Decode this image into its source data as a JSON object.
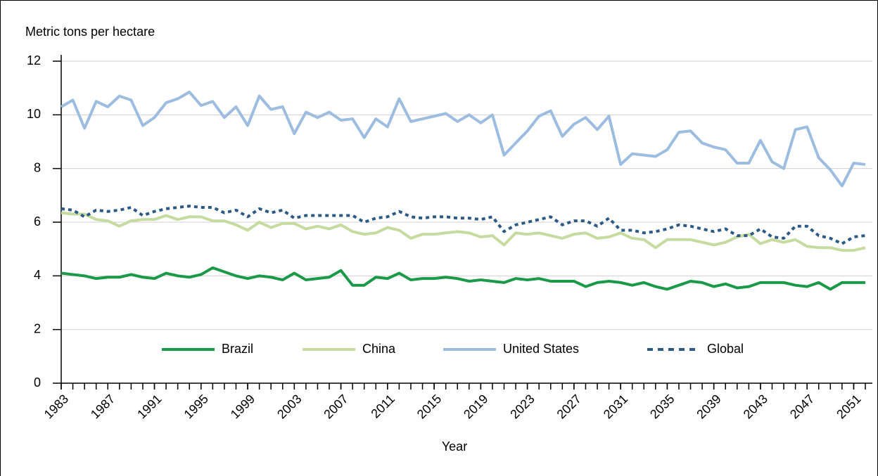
{
  "chart_data": {
    "type": "line",
    "ylabel": "Metric tons per hectare",
    "xlabel": "Year",
    "x": [
      1983,
      1984,
      1985,
      1986,
      1987,
      1988,
      1989,
      1990,
      1991,
      1992,
      1993,
      1994,
      1995,
      1996,
      1997,
      1998,
      1999,
      2000,
      2001,
      2002,
      2003,
      2004,
      2005,
      2006,
      2007,
      2008,
      2009,
      2010,
      2011,
      2012,
      2013,
      2014,
      2015,
      2016,
      2017,
      2018,
      2019,
      2020,
      2021,
      2022,
      2023,
      2024,
      2025,
      2026,
      2027,
      2028,
      2029,
      2030,
      2031,
      2032,
      2033,
      2034,
      2035,
      2036,
      2037,
      2038,
      2039,
      2040,
      2041,
      2042,
      2043,
      2044,
      2045,
      2046,
      2047,
      2048,
      2049,
      2050,
      2051,
      2052
    ],
    "xlim": [
      1983,
      2052
    ],
    "xticks": [
      1983,
      1987,
      1991,
      1995,
      1999,
      2003,
      2007,
      2011,
      2015,
      2019,
      2023,
      2027,
      2031,
      2035,
      2039,
      2043,
      2047,
      2051
    ],
    "ylim": [
      0,
      12
    ],
    "yticks": [
      0,
      2,
      4,
      6,
      8,
      10,
      12
    ],
    "grid": true,
    "legend": "lower center",
    "series": [
      {
        "name": "Brazil",
        "color": "#1a9a48",
        "linestyle": "solid",
        "values": [
          4.1,
          4.05,
          4.0,
          3.9,
          3.95,
          3.95,
          4.05,
          3.95,
          3.9,
          4.1,
          4.0,
          3.95,
          4.05,
          4.3,
          4.15,
          4.0,
          3.9,
          4.0,
          3.95,
          3.85,
          4.1,
          3.85,
          3.9,
          3.95,
          4.2,
          3.65,
          3.65,
          3.95,
          3.9,
          4.1,
          3.85,
          3.9,
          3.9,
          3.95,
          3.9,
          3.8,
          3.85,
          3.8,
          3.75,
          3.9,
          3.85,
          3.9,
          3.8,
          3.8,
          3.8,
          3.6,
          3.75,
          3.8,
          3.75,
          3.65,
          3.75,
          3.6,
          3.5,
          3.65,
          3.8,
          3.75,
          3.6,
          3.7,
          3.55,
          3.6,
          3.75,
          3.75,
          3.75,
          3.65,
          3.6,
          3.75,
          3.5,
          3.75,
          3.75,
          3.75
        ]
      },
      {
        "name": "China",
        "color": "#c5dba0",
        "linestyle": "solid",
        "values": [
          6.35,
          6.3,
          6.3,
          6.1,
          6.05,
          5.85,
          6.05,
          6.1,
          6.1,
          6.25,
          6.1,
          6.2,
          6.2,
          6.05,
          6.05,
          5.9,
          5.7,
          6.0,
          5.8,
          5.95,
          5.95,
          5.75,
          5.85,
          5.75,
          5.9,
          5.65,
          5.55,
          5.6,
          5.8,
          5.7,
          5.4,
          5.55,
          5.55,
          5.6,
          5.65,
          5.6,
          5.45,
          5.5,
          5.15,
          5.6,
          5.55,
          5.6,
          5.5,
          5.4,
          5.55,
          5.6,
          5.4,
          5.45,
          5.6,
          5.4,
          5.35,
          5.05,
          5.35,
          5.35,
          5.35,
          5.25,
          5.15,
          5.25,
          5.45,
          5.55,
          5.2,
          5.35,
          5.25,
          5.35,
          5.1,
          5.05,
          5.05,
          4.95,
          4.95,
          5.05
        ]
      },
      {
        "name": "United States",
        "color": "#9dbde0",
        "linestyle": "solid",
        "values": [
          10.3,
          10.55,
          9.5,
          10.5,
          10.3,
          10.7,
          10.55,
          9.6,
          9.9,
          10.45,
          10.6,
          10.85,
          10.35,
          10.5,
          9.9,
          10.3,
          9.6,
          10.7,
          10.2,
          10.3,
          9.3,
          10.1,
          9.9,
          10.1,
          9.8,
          9.85,
          9.15,
          9.85,
          9.55,
          10.6,
          9.75,
          9.85,
          9.95,
          10.05,
          9.75,
          10.0,
          9.7,
          10.0,
          8.5,
          8.95,
          9.4,
          9.95,
          10.15,
          9.2,
          9.65,
          9.9,
          9.45,
          9.95,
          8.15,
          8.55,
          8.5,
          8.45,
          8.7,
          9.35,
          9.4,
          8.95,
          8.8,
          8.7,
          8.2,
          8.2,
          9.05,
          8.25,
          8.0,
          9.45,
          9.55,
          8.4,
          7.95,
          7.35,
          8.2,
          8.15
        ]
      },
      {
        "name": "Global",
        "color": "#2c5a85",
        "linestyle": "dotted",
        "values": [
          6.5,
          6.45,
          6.2,
          6.45,
          6.4,
          6.45,
          6.55,
          6.25,
          6.4,
          6.5,
          6.55,
          6.6,
          6.55,
          6.55,
          6.35,
          6.45,
          6.2,
          6.5,
          6.35,
          6.45,
          6.15,
          6.25,
          6.25,
          6.25,
          6.25,
          6.25,
          6.0,
          6.15,
          6.2,
          6.4,
          6.2,
          6.15,
          6.2,
          6.2,
          6.15,
          6.15,
          6.1,
          6.2,
          5.65,
          5.9,
          6.0,
          6.1,
          6.2,
          5.9,
          6.05,
          6.05,
          5.85,
          6.15,
          5.7,
          5.7,
          5.6,
          5.65,
          5.75,
          5.9,
          5.85,
          5.75,
          5.65,
          5.75,
          5.5,
          5.5,
          5.75,
          5.45,
          5.4,
          5.85,
          5.85,
          5.5,
          5.4,
          5.2,
          5.45,
          5.5
        ]
      }
    ]
  }
}
